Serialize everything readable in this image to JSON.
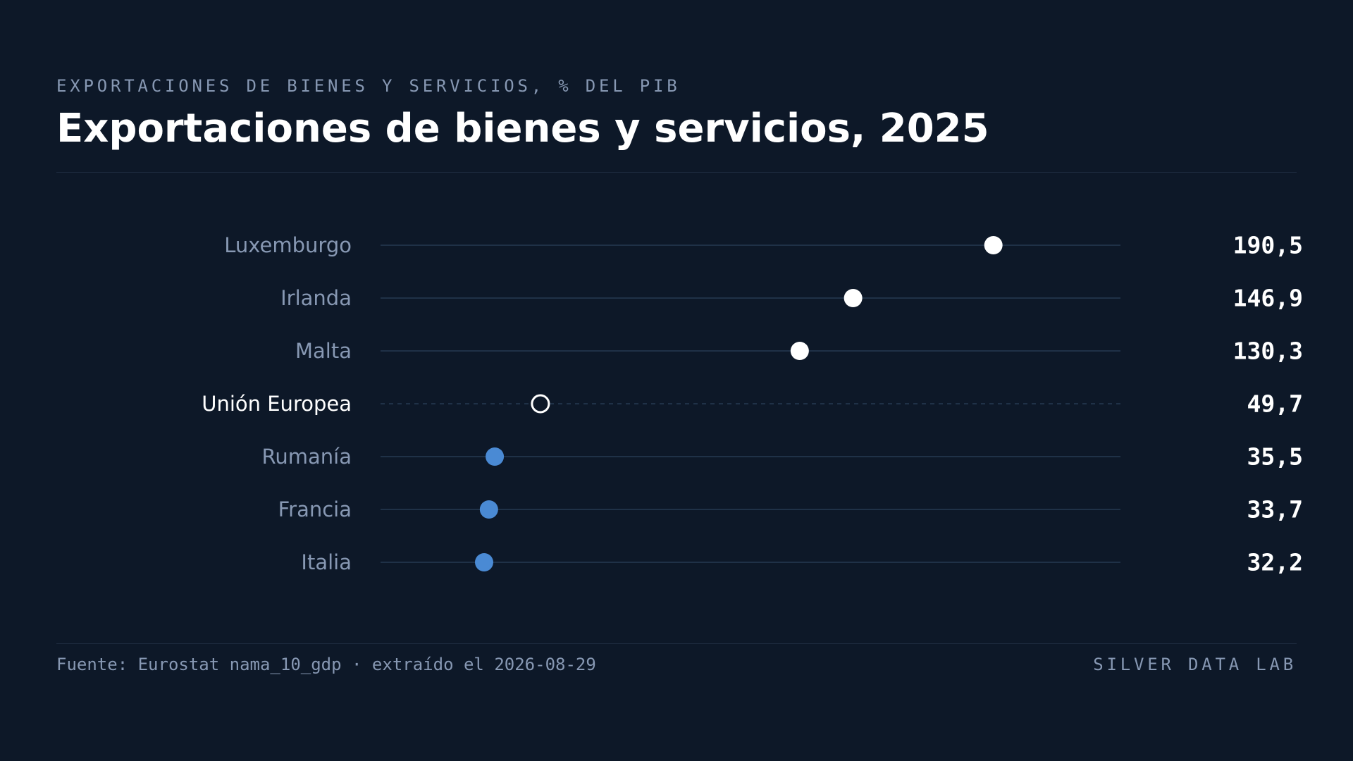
{
  "header": {
    "eyebrow": "EXPORTACIONES DE BIENES Y SERVICIOS, % DEL PIB",
    "title": "Exportaciones de bienes y servicios, 2025"
  },
  "footer": {
    "source": "Fuente: Eurostat nama_10_gdp · extraído el 2026-08-29",
    "brand": "SILVER DATA LAB"
  },
  "colors": {
    "background": "#0d1828",
    "highlight_dot": "#ffffff",
    "regular_dot": "#4a8ad4",
    "reference_outline": "#ffffff",
    "track": "#1f3147",
    "label": "#8798b3",
    "label_reference": "#ffffff",
    "value": "#ffffff"
  },
  "chart_data": {
    "type": "dot",
    "xlim": [
      0,
      230
    ],
    "grid": false,
    "categories": [
      "Luxemburgo",
      "Irlanda",
      "Malta",
      "Unión Europea",
      "Rumanía",
      "Francia",
      "Italia"
    ],
    "values": [
      190.5,
      146.9,
      130.3,
      49.7,
      35.5,
      33.7,
      32.2
    ],
    "value_labels": [
      "190,5",
      "146,9",
      "130,3",
      "49,7",
      "35,5",
      "33,7",
      "32,2"
    ],
    "groups": [
      "top",
      "top",
      "top",
      "reference",
      "other",
      "other",
      "other"
    ]
  }
}
